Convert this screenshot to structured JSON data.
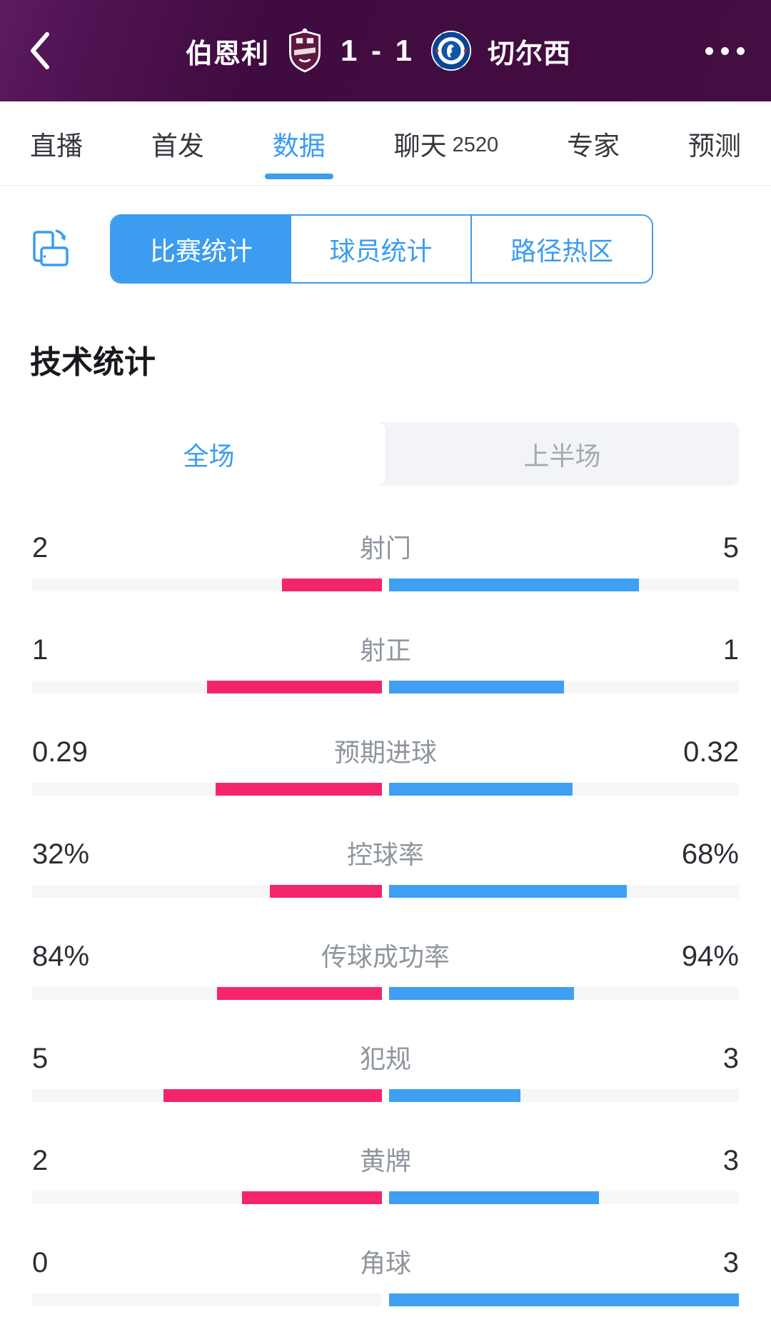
{
  "header": {
    "home_team": "伯恩利",
    "away_team": "切尔西",
    "score": "1 - 1",
    "back_icon": "chevron-left-icon",
    "more_icon": "ellipsis-icon",
    "bg_color": "#420c41"
  },
  "tabs": [
    {
      "label": "直播"
    },
    {
      "label": "首发"
    },
    {
      "label": "数据",
      "active": true
    },
    {
      "label": "聊天",
      "count": "2520"
    },
    {
      "label": "专家"
    },
    {
      "label": "预测"
    }
  ],
  "stat_type_tabs": [
    {
      "label": "比赛统计",
      "active": true
    },
    {
      "label": "球员统计"
    },
    {
      "label": "路径热区"
    }
  ],
  "section_title": "技术统计",
  "period_toggle": {
    "options": [
      "全场",
      "上半场"
    ],
    "selected": "全场"
  },
  "colors": {
    "accent_blue": "#3B9CF0",
    "home_bar": "#F4256D",
    "away_bar": "#3E9FF3",
    "bar_track": "#F5F6F8"
  },
  "stats": {
    "rows": [
      {
        "label": "射门",
        "home": "2",
        "away": "5",
        "home_value": 2,
        "away_value": 5
      },
      {
        "label": "射正",
        "home": "1",
        "away": "1",
        "home_value": 1,
        "away_value": 1
      },
      {
        "label": "预期进球",
        "home": "0.29",
        "away": "0.32",
        "home_value": 0.29,
        "away_value": 0.32
      },
      {
        "label": "控球率",
        "home": "32%",
        "away": "68%",
        "home_value": 32,
        "away_value": 68
      },
      {
        "label": "传球成功率",
        "home": "84%",
        "away": "94%",
        "home_value": 84,
        "away_value": 94
      },
      {
        "label": "犯规",
        "home": "5",
        "away": "3",
        "home_value": 5,
        "away_value": 3
      },
      {
        "label": "黄牌",
        "home": "2",
        "away": "3",
        "home_value": 2,
        "away_value": 3
      },
      {
        "label": "角球",
        "home": "0",
        "away": "3",
        "home_value": 0,
        "away_value": 3
      }
    ]
  },
  "chart_data": {
    "type": "bar",
    "title": "技术统计 (全场) 伯恩利 1 - 1 切尔西",
    "categories": [
      "射门",
      "射正",
      "预期进球",
      "控球率",
      "传球成功率",
      "犯规",
      "黄牌",
      "角球"
    ],
    "series": [
      {
        "name": "伯恩利",
        "values": [
          2,
          1,
          0.29,
          32,
          84,
          5,
          2,
          0
        ],
        "color": "#F4256D"
      },
      {
        "name": "切尔西",
        "values": [
          5,
          1,
          0.32,
          68,
          94,
          3,
          3,
          3
        ],
        "color": "#3E9FF3"
      }
    ],
    "layout": "diverging-center, each bar scaled to value/(home+away) of half width"
  }
}
